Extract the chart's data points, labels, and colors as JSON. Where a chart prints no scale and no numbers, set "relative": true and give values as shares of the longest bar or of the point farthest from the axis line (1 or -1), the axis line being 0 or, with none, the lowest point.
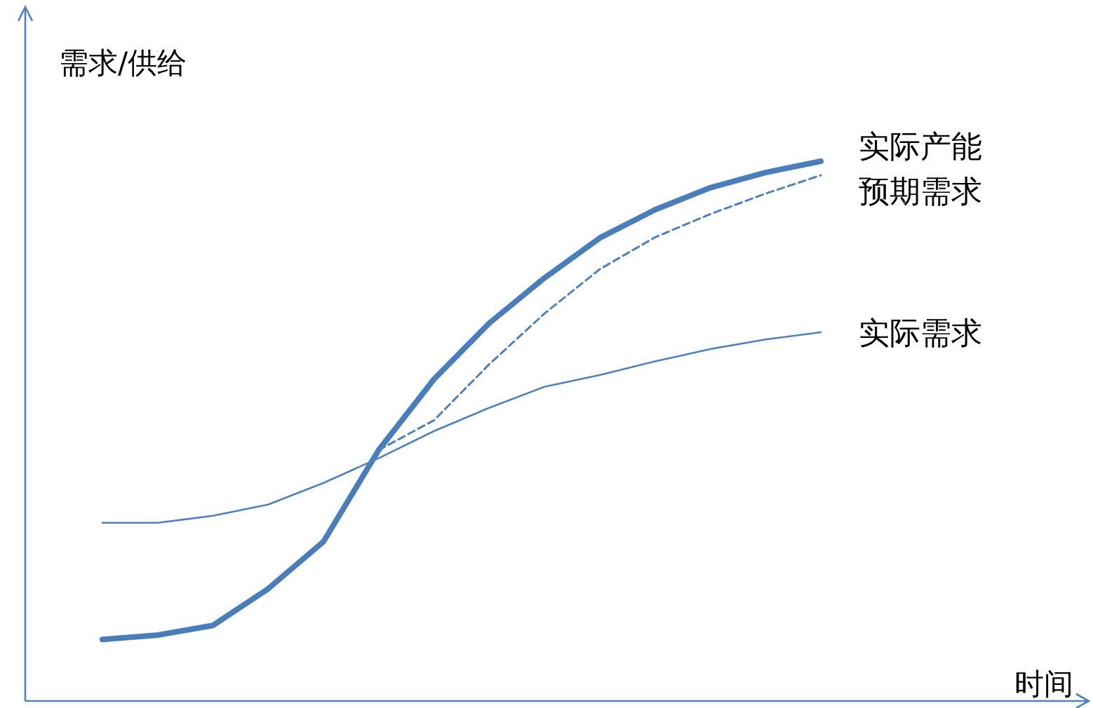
{
  "chart_data": {
    "type": "line",
    "relative": true,
    "annotations": [
      "时间"
    ],
    "ylabel": "需求/供给",
    "categories": [
      null,
      null,
      null,
      null,
      null,
      null,
      null,
      null,
      null,
      null,
      null,
      null,
      null,
      null
    ],
    "series": [
      {
        "name": "实际产能",
        "color": "#4a7ebb",
        "line_style": "solid",
        "values": [
          0.114,
          0.122,
          0.14,
          0.208,
          0.295,
          0.465,
          0.596,
          0.7,
          0.784,
          0.858,
          0.91,
          0.951,
          0.979,
          1.0
        ]
      },
      {
        "name": "预期需求",
        "color": "#4f81bd",
        "line_style": "dashed",
        "values": [
          null,
          null,
          null,
          null,
          null,
          0.465,
          0.52,
          0.624,
          0.718,
          0.8,
          0.859,
          0.902,
          0.94,
          0.974
        ]
      },
      {
        "name": "实际需求",
        "color": "#4f81bd",
        "line_style": "solid",
        "values": [
          0.33,
          0.33,
          0.343,
          0.364,
          0.404,
          0.45,
          0.5,
          0.543,
          0.582,
          0.604,
          0.629,
          0.652,
          0.67,
          0.683
        ]
      }
    ]
  }
}
